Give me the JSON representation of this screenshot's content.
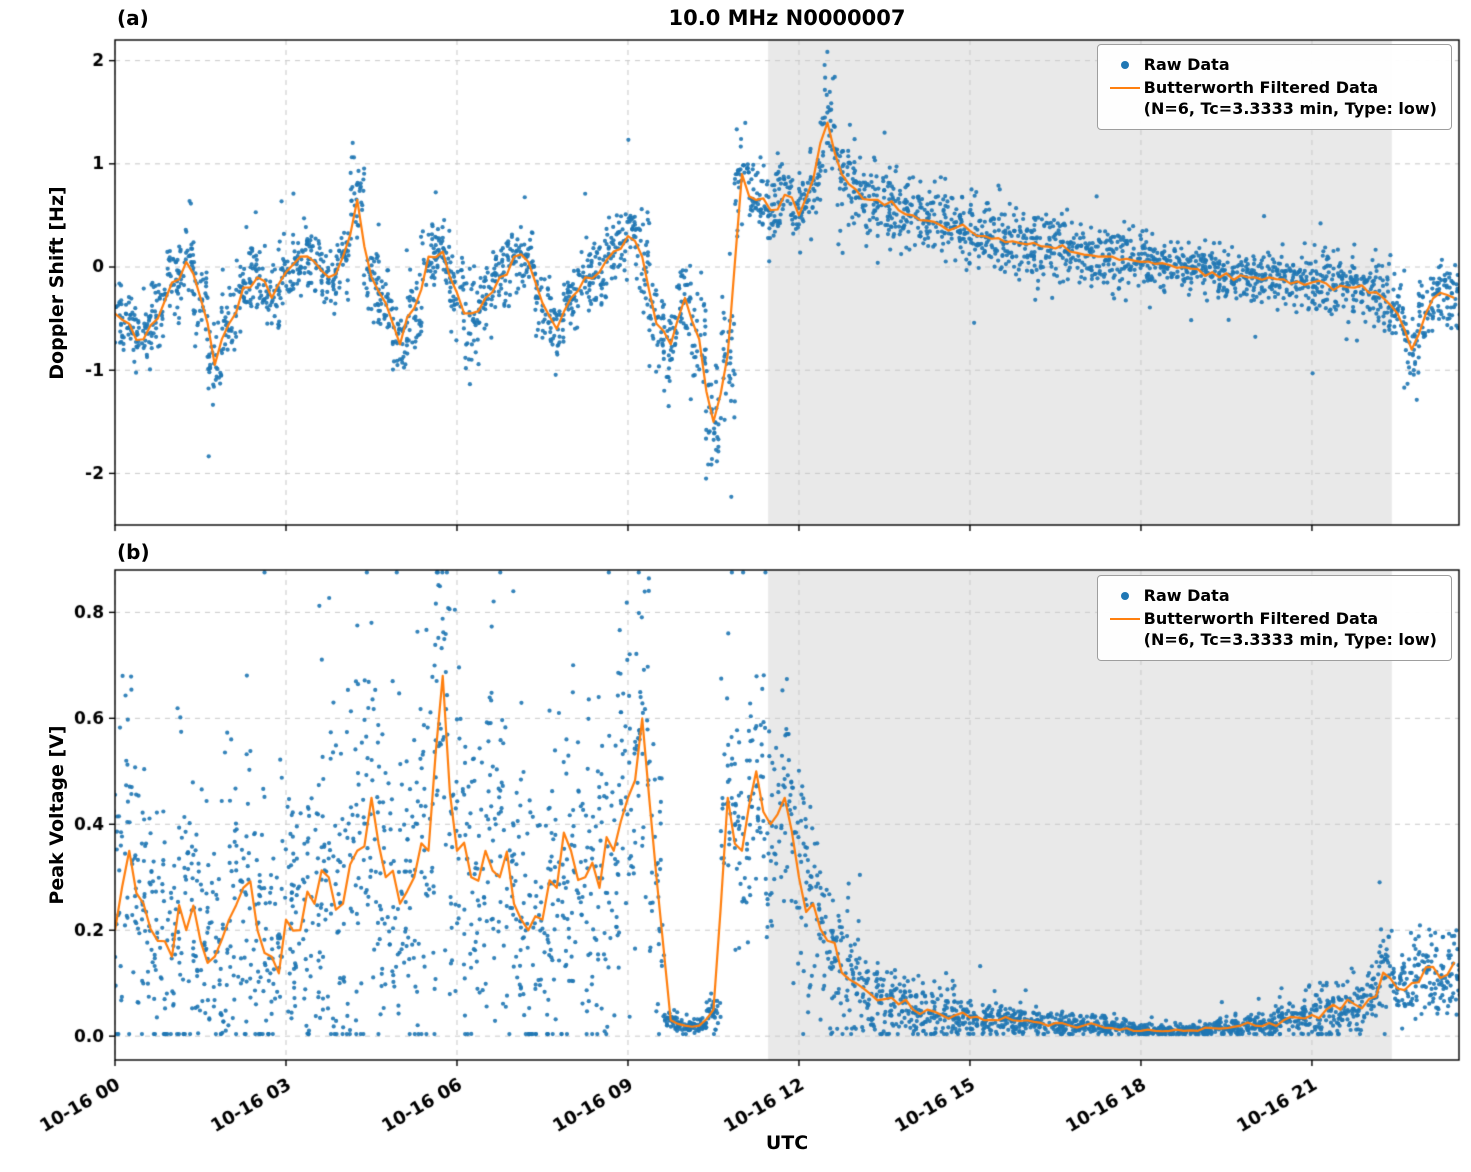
{
  "title": "10.0 MHz N0000007",
  "xlabel": "UTC",
  "panels": [
    {
      "label": "(a)",
      "ylabel": "Doppler Shift [Hz]"
    },
    {
      "label": "(b)",
      "ylabel": "Peak Voltage [V]"
    }
  ],
  "legend": {
    "raw_label": "Raw Data",
    "filtered_label": "Butterworth Filtered Data",
    "filtered_sub": "(N=6, Tc=3.3333 min, Type: low)"
  },
  "colors": {
    "raw": "#1f77b4",
    "filtered": "#ff7f0e",
    "shade": "#e9e9e9",
    "grid": "#c9c9c9",
    "frame": "#000000"
  },
  "chart_data": [
    {
      "type": "scatter",
      "panel": "(a)",
      "title": "10.0 MHz N0000007",
      "xlabel": "UTC",
      "ylabel": "Doppler Shift [Hz]",
      "ylim": [
        -2.5,
        2.2
      ],
      "yticks": [
        -2,
        -1,
        0,
        1,
        2
      ],
      "ytick_labels": [
        "-2",
        "-1",
        "0",
        "1",
        "2"
      ],
      "xlim_hours": [
        0,
        23.58
      ],
      "x_date": "10-16",
      "x_start_hour": 0.0,
      "x_step_hour": 0.25,
      "xtick_hours": [
        0,
        3,
        6,
        9,
        12,
        15,
        18,
        21
      ],
      "xtick_labels": [
        "10-16 00",
        "10-16 03",
        "10-16 06",
        "10-16 09",
        "10-16 12",
        "10-16 15",
        "10-16 18",
        "10-16 21"
      ],
      "shaded_region_hours": [
        11.46,
        22.4
      ],
      "grid": "dashed",
      "legend_position": "upper right",
      "clamp_min": null,
      "series": [
        {
          "name": "Raw Data",
          "style": "scatter",
          "color": "#1f77b4"
        },
        {
          "name": "Butterworth Filtered Data (N=6, Tc=3.3333 min, Type: low)",
          "style": "line",
          "color": "#ff7f0e",
          "values": [
            -0.45,
            -0.55,
            -0.7,
            -0.5,
            -0.15,
            0.05,
            -0.3,
            -0.95,
            -0.55,
            -0.2,
            -0.1,
            -0.3,
            -0.05,
            0.1,
            0.05,
            -0.1,
            0.1,
            0.65,
            -0.1,
            -0.35,
            -0.75,
            -0.4,
            0.1,
            0.15,
            -0.25,
            -0.45,
            -0.3,
            -0.1,
            0.1,
            0.05,
            -0.35,
            -0.6,
            -0.3,
            -0.1,
            -0.05,
            0.15,
            0.3,
            0.1,
            -0.55,
            -0.75,
            -0.3,
            -0.7,
            -1.5,
            -0.85,
            0.9,
            0.65,
            0.55,
            0.7,
            0.5,
            0.85,
            1.4,
            0.9,
            0.75,
            0.65,
            0.6,
            0.55,
            0.5,
            0.45,
            0.4,
            0.38,
            0.35,
            0.3,
            0.28,
            0.25,
            0.22,
            0.2,
            0.18,
            0.15,
            0.12,
            0.1,
            0.1,
            0.08,
            0.05,
            0.03,
            0.02,
            0.0,
            -0.02,
            -0.05,
            -0.06,
            -0.08,
            -0.1,
            -0.1,
            -0.12,
            -0.14,
            -0.15,
            -0.16,
            -0.18,
            -0.2,
            -0.25,
            -0.3,
            -0.45,
            -0.8,
            -0.45,
            -0.25,
            -0.3
          ]
        }
      ],
      "raw_spread": [
        0.25,
        0.25,
        0.3,
        0.3,
        0.25,
        0.3,
        0.3,
        0.35,
        0.3,
        0.25,
        0.25,
        0.25,
        0.25,
        0.25,
        0.25,
        0.25,
        0.25,
        0.3,
        0.3,
        0.25,
        0.3,
        0.3,
        0.25,
        0.25,
        0.3,
        0.45,
        0.3,
        0.25,
        0.25,
        0.25,
        0.3,
        0.3,
        0.25,
        0.25,
        0.25,
        0.3,
        0.35,
        0.4,
        0.35,
        0.4,
        0.35,
        0.4,
        0.45,
        0.5,
        0.35,
        0.3,
        0.25,
        0.3,
        0.3,
        0.3,
        0.4,
        0.35,
        0.3,
        0.3,
        0.3,
        0.3,
        0.3,
        0.3,
        0.3,
        0.3,
        0.3,
        0.3,
        0.3,
        0.25,
        0.25,
        0.3,
        0.3,
        0.25,
        0.25,
        0.25,
        0.25,
        0.25,
        0.2,
        0.2,
        0.2,
        0.2,
        0.2,
        0.2,
        0.2,
        0.2,
        0.2,
        0.2,
        0.2,
        0.2,
        0.25,
        0.3,
        0.2,
        0.2,
        0.25,
        0.3,
        0.3,
        0.3,
        0.25,
        0.25,
        0.25
      ]
    },
    {
      "type": "scatter",
      "panel": "(b)",
      "xlabel": "UTC",
      "ylabel": "Peak Voltage [V]",
      "ylim": [
        -0.045,
        0.88
      ],
      "yticks": [
        0.0,
        0.2,
        0.4,
        0.6,
        0.8
      ],
      "ytick_labels": [
        "0.0",
        "0.2",
        "0.4",
        "0.6",
        "0.8"
      ],
      "xlim_hours": [
        0,
        23.58
      ],
      "x_date": "10-16",
      "x_start_hour": 0.0,
      "x_step_hour": 0.25,
      "xtick_hours": [
        0,
        3,
        6,
        9,
        12,
        15,
        18,
        21
      ],
      "xtick_labels": [
        "10-16 00",
        "10-16 03",
        "10-16 06",
        "10-16 09",
        "10-16 12",
        "10-16 15",
        "10-16 18",
        "10-16 21"
      ],
      "shaded_region_hours": [
        11.46,
        22.4
      ],
      "grid": "dashed",
      "legend_position": "upper right",
      "clamp_min": 0.004,
      "series": [
        {
          "name": "Raw Data",
          "style": "scatter",
          "color": "#1f77b4"
        },
        {
          "name": "Butterworth Filtered Data (N=6, Tc=3.3333 min, Type: low)",
          "style": "line",
          "color": "#ff7f0e",
          "values": [
            0.2,
            0.35,
            0.25,
            0.18,
            0.15,
            0.2,
            0.18,
            0.15,
            0.22,
            0.28,
            0.2,
            0.15,
            0.22,
            0.2,
            0.25,
            0.3,
            0.25,
            0.35,
            0.45,
            0.3,
            0.25,
            0.3,
            0.35,
            0.68,
            0.35,
            0.3,
            0.35,
            0.3,
            0.25,
            0.2,
            0.22,
            0.28,
            0.35,
            0.3,
            0.28,
            0.35,
            0.45,
            0.6,
            0.3,
            0.03,
            0.02,
            0.02,
            0.05,
            0.45,
            0.35,
            0.5,
            0.4,
            0.45,
            0.3,
            0.25,
            0.18,
            0.12,
            0.1,
            0.08,
            0.07,
            0.06,
            0.05,
            0.05,
            0.04,
            0.04,
            0.035,
            0.03,
            0.03,
            0.03,
            0.03,
            0.025,
            0.025,
            0.02,
            0.02,
            0.02,
            0.015,
            0.015,
            0.01,
            0.01,
            0.01,
            0.01,
            0.01,
            0.015,
            0.015,
            0.02,
            0.02,
            0.025,
            0.03,
            0.035,
            0.04,
            0.05,
            0.05,
            0.06,
            0.07,
            0.12,
            0.09,
            0.1,
            0.13,
            0.11,
            0.14
          ]
        }
      ],
      "raw_spread": [
        0.3,
        0.3,
        0.25,
        0.2,
        0.2,
        0.25,
        0.2,
        0.2,
        0.25,
        0.3,
        0.25,
        0.2,
        0.25,
        0.22,
        0.28,
        0.3,
        0.3,
        0.3,
        0.3,
        0.28,
        0.25,
        0.3,
        0.3,
        0.25,
        0.3,
        0.3,
        0.3,
        0.28,
        0.25,
        0.22,
        0.25,
        0.28,
        0.3,
        0.28,
        0.28,
        0.3,
        0.28,
        0.25,
        0.2,
        0.015,
        0.012,
        0.012,
        0.03,
        0.18,
        0.18,
        0.18,
        0.18,
        0.18,
        0.18,
        0.15,
        0.12,
        0.1,
        0.08,
        0.07,
        0.06,
        0.05,
        0.05,
        0.04,
        0.04,
        0.035,
        0.03,
        0.03,
        0.03,
        0.025,
        0.025,
        0.02,
        0.02,
        0.02,
        0.015,
        0.015,
        0.015,
        0.012,
        0.012,
        0.01,
        0.01,
        0.01,
        0.012,
        0.012,
        0.015,
        0.02,
        0.02,
        0.025,
        0.03,
        0.03,
        0.035,
        0.04,
        0.04,
        0.05,
        0.05,
        0.08,
        0.05,
        0.06,
        0.07,
        0.06,
        0.07
      ]
    }
  ]
}
